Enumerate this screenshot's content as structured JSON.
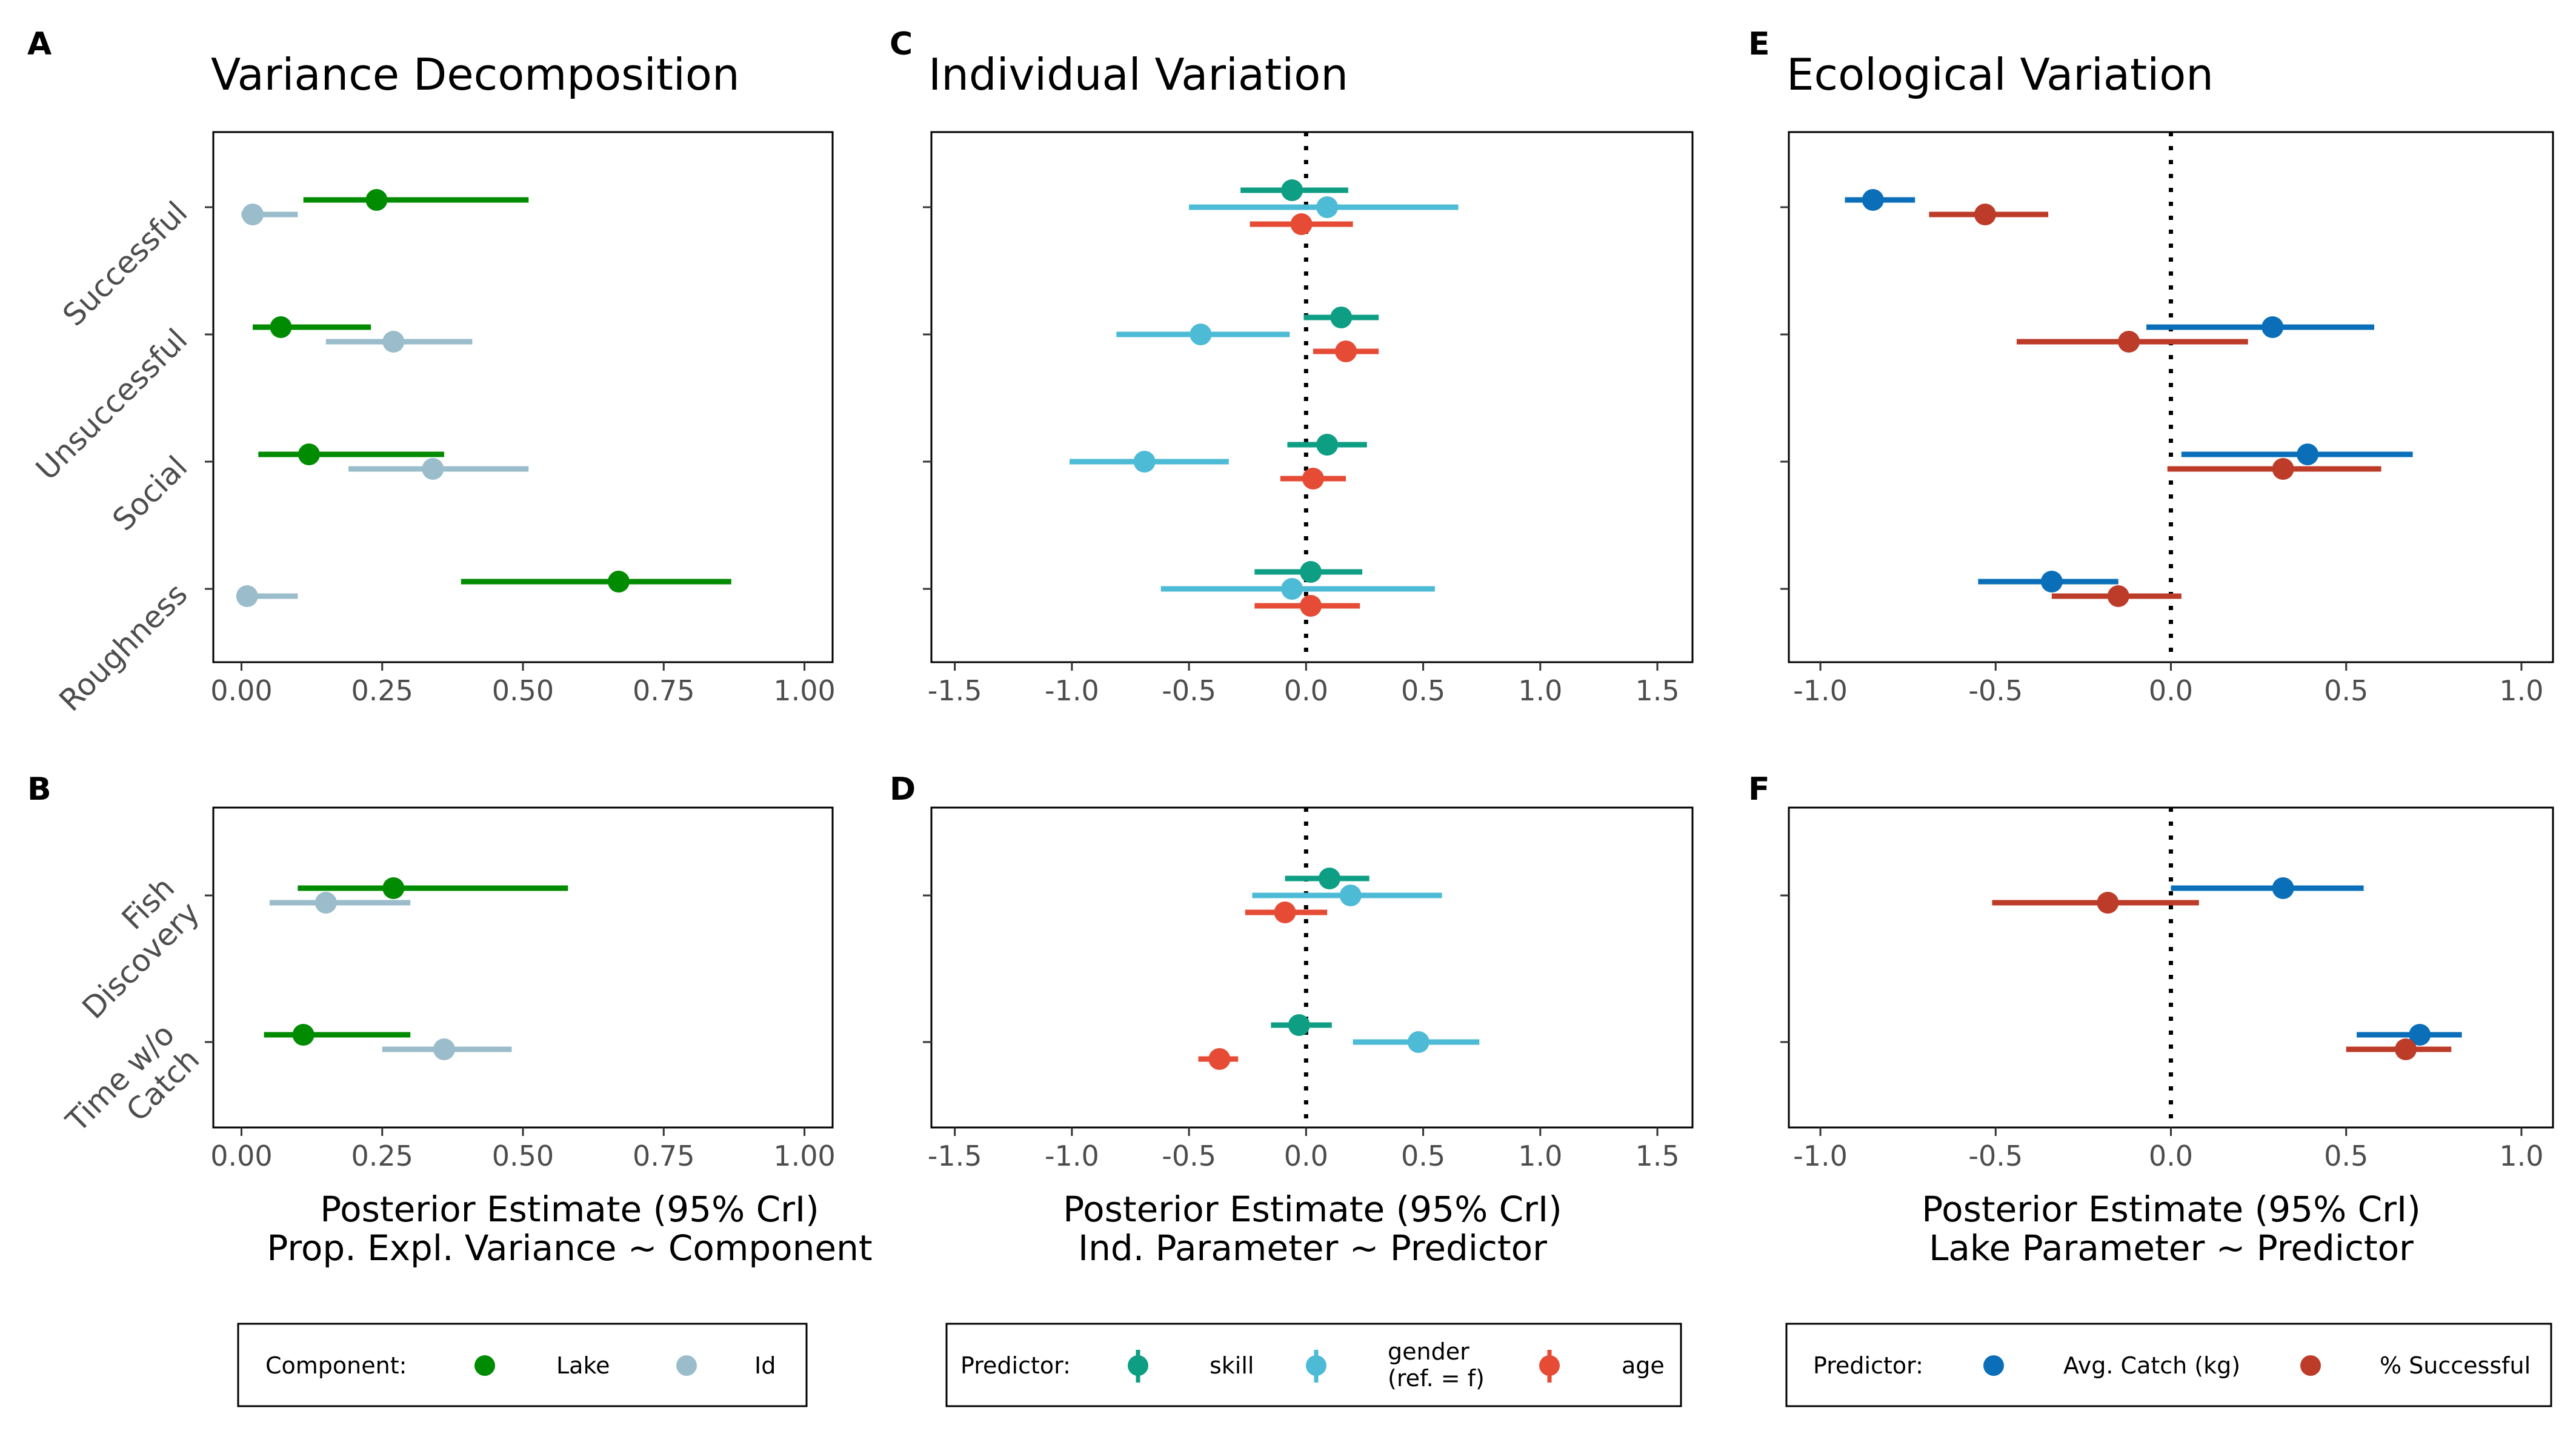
{
  "colors": {
    "lake": "#008B00",
    "id": "#9BBCCB",
    "skill": "#0E9E84",
    "gender": "#4DBBD5",
    "age": "#E64B35",
    "avg_catch": "#0A6FB8",
    "pct_successful": "#BC3C29",
    "frame": "#000000",
    "tick_text": "#4d4d4d"
  },
  "panels": {
    "A": {
      "letter": "A",
      "title": "Variance Decomposition"
    },
    "B": {
      "letter": "B",
      "title": ""
    },
    "C": {
      "letter": "C",
      "title": "Individual Variation"
    },
    "D": {
      "letter": "D",
      "title": ""
    },
    "E": {
      "letter": "E",
      "title": "Ecological Variation"
    },
    "F": {
      "letter": "F",
      "title": ""
    }
  },
  "axis_titles": {
    "col1_line1": "Posterior Estimate (95% CrI)",
    "col1_line2": "Prop. Expl. Variance ~ Component",
    "col2_line1": "Posterior Estimate (95% CrI)",
    "col2_line2": "Ind. Parameter ~ Predictor",
    "col3_line1": "Posterior Estimate (95% CrI)",
    "col3_line2": "Lake Parameter ~ Predictor"
  },
  "legends": {
    "component": {
      "title": "Component:",
      "items": [
        "Lake",
        "Id"
      ]
    },
    "predictor_ind": {
      "title": "Predictor:",
      "items": [
        "skill",
        "gender",
        "age"
      ],
      "gender_sub": "(ref. = f)"
    },
    "predictor_eco": {
      "title": "Predictor:",
      "items": [
        "Avg. Catch (kg)",
        "% Successful"
      ]
    }
  },
  "chart_data": [
    {
      "panel": "A",
      "type": "scatter",
      "title": "Variance Decomposition",
      "xlim": [
        -0.05,
        1.05
      ],
      "xticks": [
        "0.00",
        "0.25",
        "0.50",
        "0.75",
        "1.00"
      ],
      "categories": [
        "Successful",
        "Unsuccessful",
        "Social",
        "Roughness"
      ],
      "series": [
        {
          "name": "Lake",
          "points": [
            {
              "cat": "Successful",
              "est": 0.24,
              "lo": 0.11,
              "hi": 0.51
            },
            {
              "cat": "Unsuccessful",
              "est": 0.07,
              "lo": 0.02,
              "hi": 0.23
            },
            {
              "cat": "Social",
              "est": 0.12,
              "lo": 0.03,
              "hi": 0.36
            },
            {
              "cat": "Roughness",
              "est": 0.67,
              "lo": 0.39,
              "hi": 0.87
            }
          ]
        },
        {
          "name": "Id",
          "points": [
            {
              "cat": "Successful",
              "est": 0.02,
              "lo": 0.0,
              "hi": 0.1
            },
            {
              "cat": "Unsuccessful",
              "est": 0.27,
              "lo": 0.15,
              "hi": 0.41
            },
            {
              "cat": "Social",
              "est": 0.34,
              "lo": 0.19,
              "hi": 0.51
            },
            {
              "cat": "Roughness",
              "est": 0.01,
              "lo": 0.0,
              "hi": 0.1
            }
          ]
        }
      ]
    },
    {
      "panel": "B",
      "type": "scatter",
      "xlim": [
        -0.05,
        1.05
      ],
      "xticks": [
        "0.00",
        "0.25",
        "0.50",
        "0.75",
        "1.00"
      ],
      "categories": [
        "Fish Discovery",
        "Time w/o Catch"
      ],
      "category_lines": [
        [
          "Fish",
          "Discovery"
        ],
        [
          "Time w/o",
          "Catch"
        ]
      ],
      "series": [
        {
          "name": "Lake",
          "points": [
            {
              "cat": "Fish Discovery",
              "est": 0.27,
              "lo": 0.1,
              "hi": 0.58
            },
            {
              "cat": "Time w/o Catch",
              "est": 0.11,
              "lo": 0.04,
              "hi": 0.3
            }
          ]
        },
        {
          "name": "Id",
          "points": [
            {
              "cat": "Fish Discovery",
              "est": 0.15,
              "lo": 0.05,
              "hi": 0.3
            },
            {
              "cat": "Time w/o Catch",
              "est": 0.36,
              "lo": 0.25,
              "hi": 0.48
            }
          ]
        }
      ]
    },
    {
      "panel": "C",
      "type": "scatter",
      "title": "Individual Variation",
      "xlim": [
        -1.6,
        1.65
      ],
      "xticks": [
        "-1.5",
        "-1.0",
        "-0.5",
        "0.0",
        "0.5",
        "1.0",
        "1.5"
      ],
      "zero_line": true,
      "categories": [
        "Successful",
        "Unsuccessful",
        "Social",
        "Roughness"
      ],
      "series": [
        {
          "name": "skill",
          "points": [
            {
              "cat": "Successful",
              "est": -0.06,
              "lo": -0.28,
              "hi": 0.18
            },
            {
              "cat": "Unsuccessful",
              "est": 0.15,
              "lo": -0.01,
              "hi": 0.31
            },
            {
              "cat": "Social",
              "est": 0.09,
              "lo": -0.08,
              "hi": 0.26
            },
            {
              "cat": "Roughness",
              "est": 0.02,
              "lo": -0.22,
              "hi": 0.24
            }
          ]
        },
        {
          "name": "gender",
          "points": [
            {
              "cat": "Successful",
              "est": 0.09,
              "lo": -0.5,
              "hi": 0.65
            },
            {
              "cat": "Unsuccessful",
              "est": -0.45,
              "lo": -0.81,
              "hi": -0.07
            },
            {
              "cat": "Social",
              "est": -0.69,
              "lo": -1.01,
              "hi": -0.33
            },
            {
              "cat": "Roughness",
              "est": -0.06,
              "lo": -0.62,
              "hi": 0.55
            }
          ]
        },
        {
          "name": "age",
          "points": [
            {
              "cat": "Successful",
              "est": -0.02,
              "lo": -0.24,
              "hi": 0.2
            },
            {
              "cat": "Unsuccessful",
              "est": 0.17,
              "lo": 0.03,
              "hi": 0.31
            },
            {
              "cat": "Social",
              "est": 0.03,
              "lo": -0.11,
              "hi": 0.17
            },
            {
              "cat": "Roughness",
              "est": 0.02,
              "lo": -0.22,
              "hi": 0.23
            }
          ]
        }
      ]
    },
    {
      "panel": "D",
      "type": "scatter",
      "xlim": [
        -1.6,
        1.65
      ],
      "xticks": [
        "-1.5",
        "-1.0",
        "-0.5",
        "0.0",
        "0.5",
        "1.0",
        "1.5"
      ],
      "zero_line": true,
      "categories": [
        "Fish Discovery",
        "Time w/o Catch"
      ],
      "series": [
        {
          "name": "skill",
          "points": [
            {
              "cat": "Fish Discovery",
              "est": 0.1,
              "lo": -0.09,
              "hi": 0.27
            },
            {
              "cat": "Time w/o Catch",
              "est": -0.03,
              "lo": -0.15,
              "hi": 0.11
            }
          ]
        },
        {
          "name": "gender",
          "points": [
            {
              "cat": "Fish Discovery",
              "est": 0.19,
              "lo": -0.23,
              "hi": 0.58
            },
            {
              "cat": "Time w/o Catch",
              "est": 0.48,
              "lo": 0.2,
              "hi": 0.74
            }
          ]
        },
        {
          "name": "age",
          "points": [
            {
              "cat": "Fish Discovery",
              "est": -0.09,
              "lo": -0.26,
              "hi": 0.09
            },
            {
              "cat": "Time w/o Catch",
              "est": -0.37,
              "lo": -0.46,
              "hi": -0.29
            }
          ]
        }
      ]
    },
    {
      "panel": "E",
      "type": "scatter",
      "title": "Ecological Variation",
      "xlim": [
        -1.09,
        1.09
      ],
      "xticks": [
        "-1.0",
        "-0.5",
        "0.0",
        "0.5",
        "1.0"
      ],
      "zero_line": true,
      "categories": [
        "Successful",
        "Unsuccessful",
        "Social",
        "Roughness"
      ],
      "series": [
        {
          "name": "Avg. Catch (kg)",
          "points": [
            {
              "cat": "Successful",
              "est": -0.85,
              "lo": -0.93,
              "hi": -0.73
            },
            {
              "cat": "Unsuccessful",
              "est": 0.29,
              "lo": -0.07,
              "hi": 0.58
            },
            {
              "cat": "Social",
              "est": 0.39,
              "lo": 0.03,
              "hi": 0.69
            },
            {
              "cat": "Roughness",
              "est": -0.34,
              "lo": -0.55,
              "hi": -0.15
            }
          ]
        },
        {
          "name": "% Successful",
          "points": [
            {
              "cat": "Successful",
              "est": -0.53,
              "lo": -0.69,
              "hi": -0.35
            },
            {
              "cat": "Unsuccessful",
              "est": -0.12,
              "lo": -0.44,
              "hi": 0.22
            },
            {
              "cat": "Social",
              "est": 0.32,
              "lo": -0.01,
              "hi": 0.6
            },
            {
              "cat": "Roughness",
              "est": -0.15,
              "lo": -0.34,
              "hi": 0.03
            }
          ]
        }
      ]
    },
    {
      "panel": "F",
      "type": "scatter",
      "xlim": [
        -1.09,
        1.09
      ],
      "xticks": [
        "-1.0",
        "-0.5",
        "0.0",
        "0.5",
        "1.0"
      ],
      "zero_line": true,
      "categories": [
        "Fish Discovery",
        "Time w/o Catch"
      ],
      "series": [
        {
          "name": "Avg. Catch (kg)",
          "points": [
            {
              "cat": "Fish Discovery",
              "est": 0.32,
              "lo": 0.0,
              "hi": 0.55
            },
            {
              "cat": "Time w/o Catch",
              "est": 0.71,
              "lo": 0.53,
              "hi": 0.83
            }
          ]
        },
        {
          "name": "% Successful",
          "points": [
            {
              "cat": "Fish Discovery",
              "est": -0.18,
              "lo": -0.51,
              "hi": 0.08
            },
            {
              "cat": "Time w/o Catch",
              "est": 0.67,
              "lo": 0.5,
              "hi": 0.8
            }
          ]
        }
      ]
    }
  ]
}
